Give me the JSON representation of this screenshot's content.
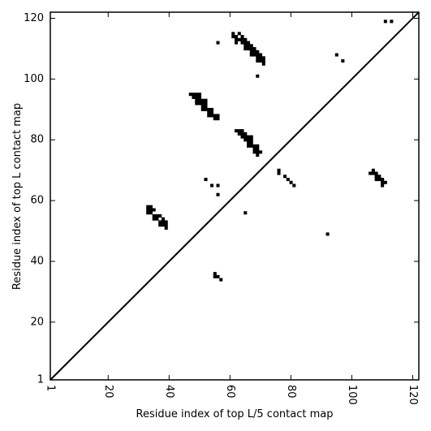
{
  "chart_data": {
    "type": "scatter",
    "marker": "square",
    "xlabel": "Residue index of top L/5 contact map",
    "ylabel": "Residue index of top L contact map",
    "xlim": [
      1,
      122
    ],
    "ylim": [
      1,
      122
    ],
    "x_ticks": [
      1,
      20,
      40,
      60,
      80,
      100,
      120
    ],
    "y_ticks": [
      1,
      20,
      40,
      60,
      80,
      100,
      120
    ],
    "diagonal": true,
    "grid": false,
    "colors": {
      "marker": "#000000",
      "axes": "#000000",
      "background": "#ffffff"
    },
    "points": [
      [
        33,
        58
      ],
      [
        34,
        58
      ],
      [
        33,
        57
      ],
      [
        34,
        57
      ],
      [
        35,
        57
      ],
      [
        33,
        56
      ],
      [
        34,
        56
      ],
      [
        35,
        55
      ],
      [
        36,
        55
      ],
      [
        37,
        55
      ],
      [
        35,
        54
      ],
      [
        36,
        54
      ],
      [
        38,
        54
      ],
      [
        37,
        53
      ],
      [
        38,
        53
      ],
      [
        39,
        53
      ],
      [
        37,
        52
      ],
      [
        38,
        52
      ],
      [
        39,
        52
      ],
      [
        39,
        51
      ],
      [
        47,
        95
      ],
      [
        48,
        95
      ],
      [
        49,
        95
      ],
      [
        50,
        95
      ],
      [
        48,
        94
      ],
      [
        49,
        94
      ],
      [
        50,
        94
      ],
      [
        49,
        93
      ],
      [
        50,
        93
      ],
      [
        51,
        93
      ],
      [
        52,
        93
      ],
      [
        49,
        92
      ],
      [
        50,
        92
      ],
      [
        51,
        92
      ],
      [
        52,
        92
      ],
      [
        51,
        91
      ],
      [
        52,
        91
      ],
      [
        51,
        90
      ],
      [
        52,
        90
      ],
      [
        53,
        90
      ],
      [
        54,
        90
      ],
      [
        53,
        89
      ],
      [
        54,
        89
      ],
      [
        53,
        88
      ],
      [
        54,
        88
      ],
      [
        55,
        88
      ],
      [
        56,
        88
      ],
      [
        55,
        87
      ],
      [
        56,
        87
      ],
      [
        62,
        83
      ],
      [
        63,
        83
      ],
      [
        64,
        83
      ],
      [
        63,
        82
      ],
      [
        64,
        82
      ],
      [
        65,
        82
      ],
      [
        64,
        81
      ],
      [
        65,
        81
      ],
      [
        66,
        81
      ],
      [
        67,
        81
      ],
      [
        65,
        80
      ],
      [
        66,
        80
      ],
      [
        67,
        80
      ],
      [
        66,
        79
      ],
      [
        67,
        79
      ],
      [
        66,
        78
      ],
      [
        67,
        78
      ],
      [
        68,
        78
      ],
      [
        69,
        78
      ],
      [
        68,
        77
      ],
      [
        69,
        77
      ],
      [
        68,
        76
      ],
      [
        69,
        76
      ],
      [
        70,
        76
      ],
      [
        69,
        75
      ],
      [
        61,
        115
      ],
      [
        63,
        115
      ],
      [
        61,
        114
      ],
      [
        62,
        114
      ],
      [
        64,
        114
      ],
      [
        62,
        113
      ],
      [
        63,
        113
      ],
      [
        64,
        113
      ],
      [
        65,
        113
      ],
      [
        62,
        112
      ],
      [
        64,
        112
      ],
      [
        65,
        112
      ],
      [
        66,
        112
      ],
      [
        65,
        111
      ],
      [
        66,
        111
      ],
      [
        67,
        111
      ],
      [
        65,
        110
      ],
      [
        66,
        110
      ],
      [
        67,
        110
      ],
      [
        68,
        110
      ],
      [
        67,
        109
      ],
      [
        68,
        109
      ],
      [
        69,
        109
      ],
      [
        67,
        108
      ],
      [
        68,
        108
      ],
      [
        69,
        108
      ],
      [
        70,
        108
      ],
      [
        69,
        107
      ],
      [
        70,
        107
      ],
      [
        71,
        107
      ],
      [
        69,
        106
      ],
      [
        70,
        106
      ],
      [
        71,
        106
      ],
      [
        71,
        105
      ],
      [
        56,
        112
      ],
      [
        69,
        101
      ],
      [
        95,
        108
      ],
      [
        97,
        106
      ],
      [
        111,
        119
      ],
      [
        113,
        119
      ],
      [
        107,
        70
      ],
      [
        106,
        69
      ],
      [
        107,
        69
      ],
      [
        108,
        69
      ],
      [
        108,
        68
      ],
      [
        109,
        68
      ],
      [
        108,
        67
      ],
      [
        109,
        67
      ],
      [
        110,
        67
      ],
      [
        110,
        66
      ],
      [
        111,
        66
      ],
      [
        110,
        65
      ],
      [
        76,
        70
      ],
      [
        76,
        69
      ],
      [
        78,
        68
      ],
      [
        79,
        67
      ],
      [
        80,
        66
      ],
      [
        81,
        65
      ],
      [
        52,
        67
      ],
      [
        54,
        65
      ],
      [
        56,
        65
      ],
      [
        56,
        62
      ],
      [
        65,
        56
      ],
      [
        92,
        49
      ],
      [
        55,
        36
      ],
      [
        55,
        35
      ],
      [
        56,
        35
      ],
      [
        57,
        34
      ]
    ]
  }
}
